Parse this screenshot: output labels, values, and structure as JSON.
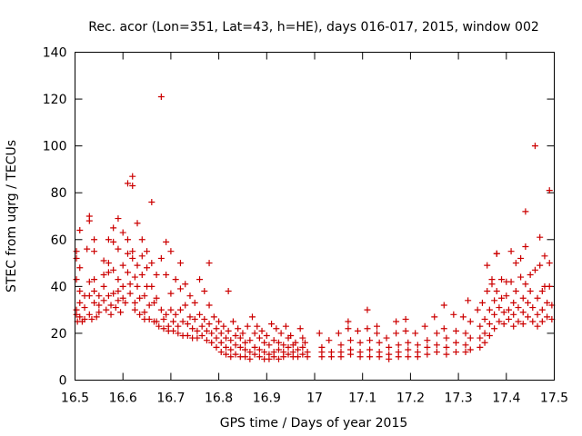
{
  "chart_data": {
    "type": "scatter",
    "title": "Rec. acor (Lon=351, Lat=43, h=HE), days 016-017, 2015, window 002",
    "xlabel": "GPS time / Days of year 2015",
    "ylabel": "STEC from uqrg / TECUs",
    "xlim": [
      16.5,
      17.5
    ],
    "ylim": [
      0,
      140
    ],
    "xticks": [
      "16.5",
      "16.6",
      "16.7",
      "16.8",
      "16.9",
      "17",
      "17.1",
      "17.2",
      "17.3",
      "17.4",
      "17.5"
    ],
    "yticks": [
      "0",
      "20",
      "40",
      "60",
      "80",
      "100",
      "120",
      "140"
    ],
    "marker": "+",
    "color": "#cc0000",
    "points": [
      [
        16.503,
        55
      ],
      [
        16.503,
        52
      ],
      [
        16.503,
        43
      ],
      [
        16.503,
        30
      ],
      [
        16.503,
        28
      ],
      [
        16.505,
        25
      ],
      [
        16.51,
        64
      ],
      [
        16.51,
        48
      ],
      [
        16.51,
        38
      ],
      [
        16.51,
        33
      ],
      [
        16.51,
        27
      ],
      [
        16.515,
        25
      ],
      [
        16.52,
        36
      ],
      [
        16.52,
        31
      ],
      [
        16.52,
        26
      ],
      [
        16.525,
        56
      ],
      [
        16.53,
        70
      ],
      [
        16.53,
        68
      ],
      [
        16.53,
        42
      ],
      [
        16.53,
        36
      ],
      [
        16.53,
        28
      ],
      [
        16.535,
        26
      ],
      [
        16.54,
        60
      ],
      [
        16.54,
        55
      ],
      [
        16.54,
        43
      ],
      [
        16.54,
        38
      ],
      [
        16.54,
        33
      ],
      [
        16.545,
        27
      ],
      [
        16.55,
        36
      ],
      [
        16.55,
        32
      ],
      [
        16.55,
        29
      ],
      [
        16.56,
        51
      ],
      [
        16.56,
        45
      ],
      [
        16.56,
        40
      ],
      [
        16.56,
        34
      ],
      [
        16.565,
        30
      ],
      [
        16.57,
        60
      ],
      [
        16.57,
        50
      ],
      [
        16.57,
        46
      ],
      [
        16.57,
        36
      ],
      [
        16.575,
        32
      ],
      [
        16.575,
        28
      ],
      [
        16.58,
        65
      ],
      [
        16.58,
        59
      ],
      [
        16.58,
        47
      ],
      [
        16.58,
        37
      ],
      [
        16.585,
        31
      ],
      [
        16.59,
        69
      ],
      [
        16.59,
        56
      ],
      [
        16.59,
        43
      ],
      [
        16.59,
        38
      ],
      [
        16.59,
        34
      ],
      [
        16.595,
        29
      ],
      [
        16.6,
        63
      ],
      [
        16.6,
        49
      ],
      [
        16.6,
        40
      ],
      [
        16.6,
        35
      ],
      [
        16.605,
        33
      ],
      [
        16.61,
        84
      ],
      [
        16.61,
        60
      ],
      [
        16.61,
        54
      ],
      [
        16.61,
        46
      ],
      [
        16.615,
        41
      ],
      [
        16.615,
        37
      ],
      [
        16.62,
        87
      ],
      [
        16.62,
        83
      ],
      [
        16.62,
        55
      ],
      [
        16.62,
        52
      ],
      [
        16.625,
        44
      ],
      [
        16.625,
        33
      ],
      [
        16.625,
        30
      ],
      [
        16.63,
        67
      ],
      [
        16.63,
        49
      ],
      [
        16.63,
        40
      ],
      [
        16.635,
        35
      ],
      [
        16.635,
        28
      ],
      [
        16.64,
        60
      ],
      [
        16.64,
        53
      ],
      [
        16.64,
        45
      ],
      [
        16.645,
        36
      ],
      [
        16.645,
        29
      ],
      [
        16.645,
        26
      ],
      [
        16.65,
        55
      ],
      [
        16.65,
        48
      ],
      [
        16.65,
        40
      ],
      [
        16.655,
        32
      ],
      [
        16.655,
        26
      ],
      [
        16.66,
        76
      ],
      [
        16.66,
        50
      ],
      [
        16.66,
        40
      ],
      [
        16.665,
        33
      ],
      [
        16.665,
        25
      ],
      [
        16.67,
        45
      ],
      [
        16.67,
        35
      ],
      [
        16.67,
        25
      ],
      [
        16.675,
        23
      ],
      [
        16.68,
        121
      ],
      [
        16.68,
        52
      ],
      [
        16.68,
        30
      ],
      [
        16.685,
        26
      ],
      [
        16.685,
        22
      ],
      [
        16.69,
        59
      ],
      [
        16.69,
        45
      ],
      [
        16.69,
        28
      ],
      [
        16.695,
        23
      ],
      [
        16.695,
        21
      ],
      [
        16.7,
        55
      ],
      [
        16.7,
        37
      ],
      [
        16.7,
        30
      ],
      [
        16.705,
        25
      ],
      [
        16.705,
        21
      ],
      [
        16.71,
        43
      ],
      [
        16.71,
        28
      ],
      [
        16.715,
        23
      ],
      [
        16.715,
        20
      ],
      [
        16.72,
        50
      ],
      [
        16.72,
        39
      ],
      [
        16.72,
        30
      ],
      [
        16.725,
        25
      ],
      [
        16.725,
        19
      ],
      [
        16.73,
        41
      ],
      [
        16.73,
        32
      ],
      [
        16.735,
        24
      ],
      [
        16.735,
        19
      ],
      [
        16.74,
        36
      ],
      [
        16.74,
        27
      ],
      [
        16.745,
        22
      ],
      [
        16.745,
        18
      ],
      [
        16.75,
        33
      ],
      [
        16.75,
        26
      ],
      [
        16.755,
        21
      ],
      [
        16.755,
        18
      ],
      [
        16.76,
        43
      ],
      [
        16.76,
        28
      ],
      [
        16.765,
        23
      ],
      [
        16.765,
        19
      ],
      [
        16.77,
        38
      ],
      [
        16.77,
        26
      ],
      [
        16.775,
        21
      ],
      [
        16.775,
        17
      ],
      [
        16.78,
        50
      ],
      [
        16.78,
        32
      ],
      [
        16.78,
        24
      ],
      [
        16.785,
        20
      ],
      [
        16.785,
        16
      ],
      [
        16.79,
        27
      ],
      [
        16.795,
        22
      ],
      [
        16.795,
        18
      ],
      [
        16.795,
        14
      ],
      [
        16.8,
        25
      ],
      [
        16.805,
        20
      ],
      [
        16.805,
        16
      ],
      [
        16.805,
        12
      ],
      [
        16.81,
        23
      ],
      [
        16.815,
        18
      ],
      [
        16.815,
        14
      ],
      [
        16.815,
        11
      ],
      [
        16.82,
        38
      ],
      [
        16.82,
        21
      ],
      [
        16.825,
        17
      ],
      [
        16.825,
        13
      ],
      [
        16.825,
        10
      ],
      [
        16.83,
        25
      ],
      [
        16.835,
        19
      ],
      [
        16.835,
        15
      ],
      [
        16.835,
        11
      ],
      [
        16.84,
        22
      ],
      [
        16.845,
        18
      ],
      [
        16.845,
        14
      ],
      [
        16.845,
        10
      ],
      [
        16.85,
        20
      ],
      [
        16.855,
        16
      ],
      [
        16.855,
        13
      ],
      [
        16.855,
        10
      ],
      [
        16.86,
        23
      ],
      [
        16.865,
        17
      ],
      [
        16.865,
        12
      ],
      [
        16.865,
        9
      ],
      [
        16.87,
        27
      ],
      [
        16.875,
        20
      ],
      [
        16.875,
        14
      ],
      [
        16.875,
        11
      ],
      [
        16.88,
        23
      ],
      [
        16.885,
        18
      ],
      [
        16.885,
        13
      ],
      [
        16.885,
        10
      ],
      [
        16.89,
        21
      ],
      [
        16.895,
        16
      ],
      [
        16.895,
        12
      ],
      [
        16.895,
        9
      ],
      [
        16.9,
        19
      ],
      [
        16.905,
        15
      ],
      [
        16.905,
        11
      ],
      [
        16.905,
        9
      ],
      [
        16.91,
        24
      ],
      [
        16.915,
        17
      ],
      [
        16.915,
        12
      ],
      [
        16.915,
        10
      ],
      [
        16.92,
        22
      ],
      [
        16.925,
        16
      ],
      [
        16.925,
        13
      ],
      [
        16.925,
        9
      ],
      [
        16.93,
        20
      ],
      [
        16.935,
        15
      ],
      [
        16.935,
        12
      ],
      [
        16.935,
        10
      ],
      [
        16.94,
        23
      ],
      [
        16.945,
        18
      ],
      [
        16.945,
        14
      ],
      [
        16.945,
        11
      ],
      [
        16.95,
        19
      ],
      [
        16.955,
        15
      ],
      [
        16.955,
        12
      ],
      [
        16.955,
        10
      ],
      [
        16.96,
        16
      ],
      [
        16.965,
        13
      ],
      [
        16.965,
        10
      ],
      [
        16.97,
        22
      ],
      [
        16.975,
        18
      ],
      [
        16.975,
        14
      ],
      [
        16.975,
        11
      ],
      [
        16.98,
        16
      ],
      [
        16.985,
        12
      ],
      [
        16.985,
        10
      ],
      [
        17.01,
        20
      ],
      [
        17.015,
        14
      ],
      [
        17.015,
        12
      ],
      [
        17.015,
        10
      ],
      [
        17.03,
        17
      ],
      [
        17.035,
        12
      ],
      [
        17.035,
        10
      ],
      [
        17.05,
        20
      ],
      [
        17.055,
        15
      ],
      [
        17.055,
        12
      ],
      [
        17.055,
        10
      ],
      [
        17.07,
        25
      ],
      [
        17.07,
        22
      ],
      [
        17.075,
        17
      ],
      [
        17.075,
        13
      ],
      [
        17.075,
        11
      ],
      [
        17.09,
        21
      ],
      [
        17.095,
        16
      ],
      [
        17.095,
        12
      ],
      [
        17.095,
        10
      ],
      [
        17.11,
        30
      ],
      [
        17.11,
        22
      ],
      [
        17.115,
        17
      ],
      [
        17.115,
        13
      ],
      [
        17.115,
        10
      ],
      [
        17.13,
        23
      ],
      [
        17.13,
        20
      ],
      [
        17.135,
        16
      ],
      [
        17.135,
        12
      ],
      [
        17.135,
        10
      ],
      [
        17.15,
        18
      ],
      [
        17.155,
        14
      ],
      [
        17.155,
        11
      ],
      [
        17.155,
        9
      ],
      [
        17.17,
        25
      ],
      [
        17.17,
        20
      ],
      [
        17.175,
        15
      ],
      [
        17.175,
        12
      ],
      [
        17.175,
        10
      ],
      [
        17.19,
        26
      ],
      [
        17.19,
        21
      ],
      [
        17.195,
        16
      ],
      [
        17.195,
        13
      ],
      [
        17.195,
        10
      ],
      [
        17.21,
        20
      ],
      [
        17.215,
        15
      ],
      [
        17.215,
        12
      ],
      [
        17.215,
        10
      ],
      [
        17.23,
        23
      ],
      [
        17.235,
        17
      ],
      [
        17.235,
        14
      ],
      [
        17.235,
        11
      ],
      [
        17.25,
        27
      ],
      [
        17.255,
        20
      ],
      [
        17.255,
        15
      ],
      [
        17.255,
        12
      ],
      [
        17.27,
        32
      ],
      [
        17.27,
        22
      ],
      [
        17.275,
        18
      ],
      [
        17.275,
        14
      ],
      [
        17.275,
        11
      ],
      [
        17.29,
        28
      ],
      [
        17.295,
        21
      ],
      [
        17.295,
        16
      ],
      [
        17.295,
        12
      ],
      [
        17.31,
        27
      ],
      [
        17.315,
        20
      ],
      [
        17.315,
        15
      ],
      [
        17.315,
        12
      ],
      [
        17.32,
        34
      ],
      [
        17.325,
        25
      ],
      [
        17.325,
        18
      ],
      [
        17.325,
        13
      ],
      [
        17.34,
        30
      ],
      [
        17.345,
        23
      ],
      [
        17.345,
        18
      ],
      [
        17.345,
        14
      ],
      [
        17.35,
        33
      ],
      [
        17.355,
        26
      ],
      [
        17.355,
        20
      ],
      [
        17.355,
        16
      ],
      [
        17.36,
        49
      ],
      [
        17.36,
        38
      ],
      [
        17.365,
        30
      ],
      [
        17.365,
        24
      ],
      [
        17.365,
        19
      ],
      [
        17.37,
        43
      ],
      [
        17.37,
        41
      ],
      [
        17.375,
        34
      ],
      [
        17.375,
        28
      ],
      [
        17.375,
        22
      ],
      [
        17.38,
        54
      ],
      [
        17.38,
        54
      ],
      [
        17.38,
        38
      ],
      [
        17.385,
        31
      ],
      [
        17.385,
        25
      ],
      [
        17.39,
        43
      ],
      [
        17.39,
        35
      ],
      [
        17.395,
        29
      ],
      [
        17.395,
        24
      ],
      [
        17.4,
        42
      ],
      [
        17.4,
        36
      ],
      [
        17.405,
        30
      ],
      [
        17.405,
        26
      ],
      [
        17.41,
        55
      ],
      [
        17.41,
        42
      ],
      [
        17.415,
        33
      ],
      [
        17.415,
        28
      ],
      [
        17.415,
        23
      ],
      [
        17.42,
        50
      ],
      [
        17.42,
        38
      ],
      [
        17.425,
        31
      ],
      [
        17.425,
        25
      ],
      [
        17.43,
        52
      ],
      [
        17.43,
        44
      ],
      [
        17.435,
        35
      ],
      [
        17.435,
        29
      ],
      [
        17.435,
        24
      ],
      [
        17.44,
        72
      ],
      [
        17.44,
        57
      ],
      [
        17.44,
        41
      ],
      [
        17.445,
        33
      ],
      [
        17.445,
        27
      ],
      [
        17.45,
        45
      ],
      [
        17.45,
        38
      ],
      [
        17.455,
        31
      ],
      [
        17.455,
        25
      ],
      [
        17.46,
        100
      ],
      [
        17.46,
        47
      ],
      [
        17.465,
        35
      ],
      [
        17.465,
        28
      ],
      [
        17.465,
        23
      ],
      [
        17.47,
        61
      ],
      [
        17.47,
        49
      ],
      [
        17.475,
        38
      ],
      [
        17.475,
        30
      ],
      [
        17.475,
        25
      ],
      [
        17.48,
        53
      ],
      [
        17.48,
        40
      ],
      [
        17.485,
        33
      ],
      [
        17.485,
        27
      ],
      [
        17.49,
        81
      ],
      [
        17.49,
        50
      ],
      [
        17.49,
        40
      ],
      [
        17.495,
        32
      ],
      [
        17.495,
        26
      ]
    ]
  }
}
